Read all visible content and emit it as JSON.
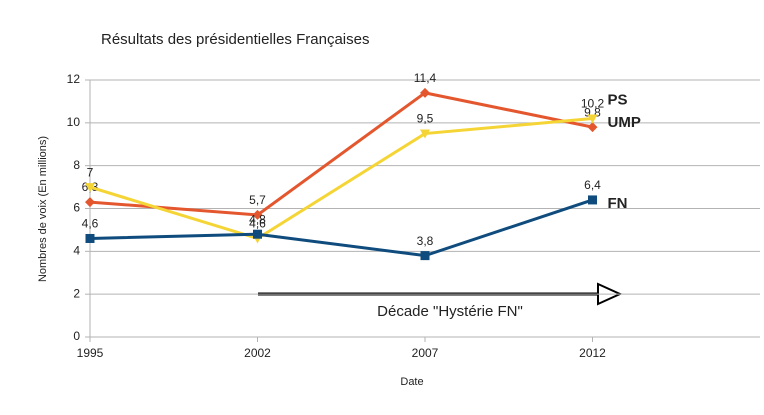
{
  "chart_data": {
    "type": "line",
    "title": "Résultats des présidentielles Françaises",
    "x_label": "Date",
    "y_label": "Nombres de voix (En millions)",
    "categories": [
      "1995",
      "2002",
      "2007",
      "2012"
    ],
    "series": [
      {
        "name": "UMP",
        "color": "#e4572e",
        "marker": "diamond",
        "values": [
          6.3,
          5.7,
          11.4,
          9.8
        ],
        "value_labels": [
          "6,3",
          "5,7",
          "11,4",
          "9,8"
        ]
      },
      {
        "name": "PS",
        "color": "#f5d535",
        "marker": "triangle-down",
        "values": [
          7,
          4.6,
          9.5,
          10.2
        ],
        "value_labels": [
          "7",
          "4,6",
          "9,5",
          "10,2"
        ]
      },
      {
        "name": "FN",
        "color": "#0f4c7d",
        "marker": "square",
        "values": [
          4.6,
          4.8,
          3.8,
          6.4
        ],
        "value_labels": [
          "4,6",
          "4,8",
          "3,8",
          "6,4"
        ]
      }
    ],
    "ylim": [
      0,
      12
    ],
    "yticks": [
      0,
      2,
      4,
      6,
      8,
      10,
      12
    ],
    "grid": true,
    "annotation": "Décade \"Hystérie FN\""
  }
}
